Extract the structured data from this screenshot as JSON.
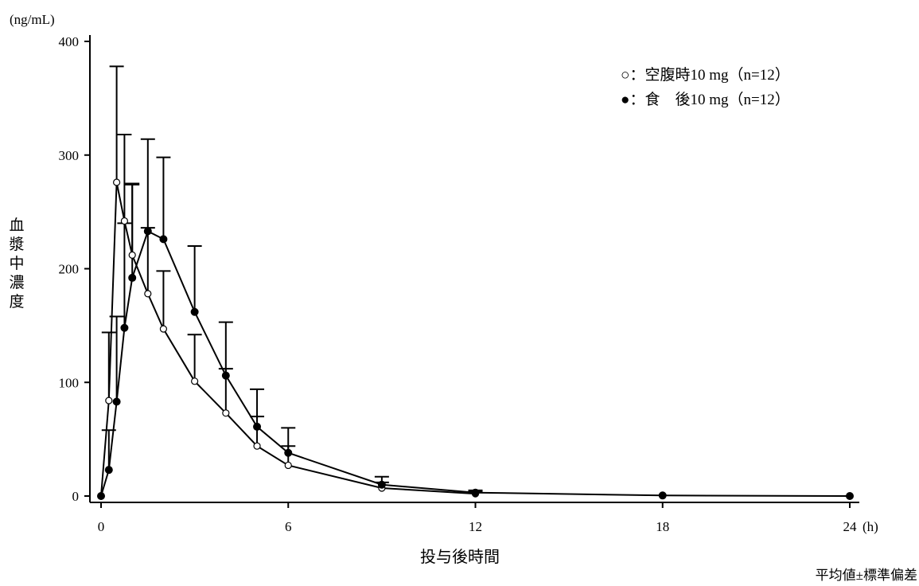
{
  "chart_data": {
    "type": "line",
    "y_unit": "(ng/mL)",
    "ylabel": "血漿中濃度",
    "xlabel": "投与後時間",
    "x_unit": "(h)",
    "footnote": "平均値±標準偏差",
    "xlim": [
      0,
      24
    ],
    "ylim": [
      0,
      400
    ],
    "x_ticks": [
      0,
      6,
      12,
      18,
      24
    ],
    "y_ticks": [
      0,
      100,
      200,
      300,
      400
    ],
    "grid": false,
    "legend_position": "top-right",
    "series": [
      {
        "name": "○：空腹時10 mg（n=12）",
        "marker": "open-circle",
        "color": "#000000",
        "x": [
          0,
          0.25,
          0.5,
          0.75,
          1,
          1.5,
          2,
          3,
          4,
          5,
          6,
          9,
          12
        ],
        "y": [
          0,
          84,
          276,
          242,
          212,
          178,
          147,
          101,
          73,
          44,
          27,
          7,
          2
        ],
        "sd": [
          0,
          60,
          102,
          76,
          63,
          58,
          51,
          41,
          39,
          26,
          17,
          5,
          2
        ]
      },
      {
        "name": "●：食　後10 mg（n=12）",
        "marker": "filled-circle",
        "color": "#000000",
        "x": [
          0,
          0.25,
          0.5,
          0.75,
          1,
          1.5,
          2,
          3,
          4,
          5,
          6,
          9,
          12,
          18,
          24
        ],
        "y": [
          0,
          23,
          83,
          148,
          192,
          233,
          226,
          162,
          106,
          61,
          38,
          10,
          3,
          0.5,
          0
        ],
        "sd": [
          0,
          35,
          75,
          92,
          82,
          81,
          72,
          58,
          47,
          33,
          22,
          7,
          2,
          0,
          0
        ]
      }
    ]
  }
}
